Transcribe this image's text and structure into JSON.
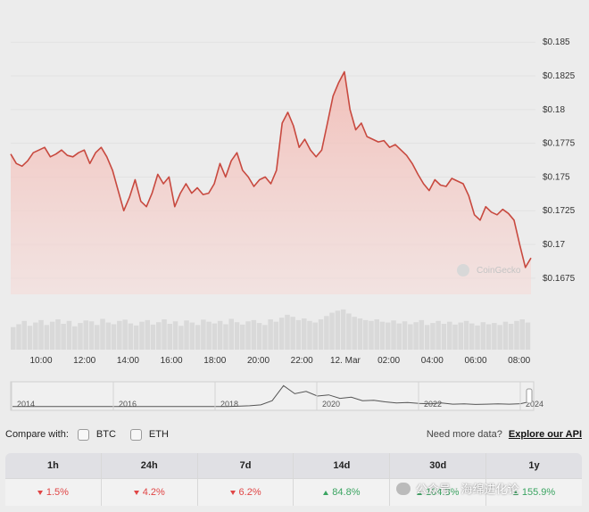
{
  "chart_data": {
    "type": "area",
    "y_ticks": [
      "$0.185",
      "$0.1825",
      "$0.18",
      "$0.1775",
      "$0.175",
      "$0.1725",
      "$0.17",
      "$0.1675"
    ],
    "ylim": [
      0.1663,
      0.1868
    ],
    "x_ticks": [
      "10:00",
      "12:00",
      "14:00",
      "16:00",
      "18:00",
      "20:00",
      "22:00",
      "12. Mar",
      "02:00",
      "04:00",
      "06:00",
      "08:00"
    ],
    "line_color": "#c8493f",
    "fill_color": "#f4c6c1",
    "series": [
      {
        "values": [
          0.1767,
          0.176,
          0.1758,
          0.1762,
          0.1768,
          0.177,
          0.1772,
          0.1765,
          0.1767,
          0.177,
          0.1766,
          0.1765,
          0.1768,
          0.177,
          0.176,
          0.1768,
          0.1772,
          0.1765,
          0.1755,
          0.174,
          0.1725,
          0.1735,
          0.1748,
          0.1732,
          0.1728,
          0.1738,
          0.1752,
          0.1745,
          0.175,
          0.1728,
          0.1738,
          0.1745,
          0.1738,
          0.1742,
          0.1737,
          0.1738,
          0.1745,
          0.176,
          0.175,
          0.1762,
          0.1768,
          0.1755,
          0.175,
          0.1743,
          0.1748,
          0.175,
          0.1745,
          0.1755,
          0.179,
          0.1798,
          0.1788,
          0.1772,
          0.1778,
          0.177,
          0.1765,
          0.177,
          0.179,
          0.181,
          0.182,
          0.1828,
          0.18,
          0.1785,
          0.179,
          0.178,
          0.1778,
          0.1776,
          0.1777,
          0.1772,
          0.1774,
          0.177,
          0.1766,
          0.176,
          0.1752,
          0.1745,
          0.174,
          0.1748,
          0.1744,
          0.1743,
          0.1749,
          0.1747,
          0.1745,
          0.1736,
          0.1722,
          0.1718,
          0.1728,
          0.1724,
          0.1722,
          0.1726,
          0.1723,
          0.1718,
          0.17,
          0.1683,
          0.169
        ]
      }
    ],
    "volume": [
      0.55,
      0.62,
      0.7,
      0.58,
      0.66,
      0.72,
      0.6,
      0.68,
      0.74,
      0.63,
      0.7,
      0.57,
      0.65,
      0.71,
      0.69,
      0.6,
      0.75,
      0.66,
      0.62,
      0.7,
      0.73,
      0.64,
      0.59,
      0.68,
      0.72,
      0.61,
      0.67,
      0.74,
      0.63,
      0.69,
      0.58,
      0.71,
      0.66,
      0.6,
      0.73,
      0.68,
      0.64,
      0.7,
      0.62,
      0.75,
      0.67,
      0.61,
      0.69,
      0.72,
      0.65,
      0.6,
      0.74,
      0.68,
      0.78,
      0.85,
      0.8,
      0.72,
      0.76,
      0.7,
      0.66,
      0.74,
      0.82,
      0.9,
      0.95,
      0.98,
      0.88,
      0.8,
      0.76,
      0.72,
      0.7,
      0.74,
      0.68,
      0.66,
      0.71,
      0.64,
      0.69,
      0.62,
      0.67,
      0.72,
      0.6,
      0.65,
      0.7,
      0.63,
      0.68,
      0.61,
      0.66,
      0.7,
      0.64,
      0.59,
      0.67,
      0.62,
      0.65,
      0.6,
      0.68,
      0.63,
      0.7,
      0.74,
      0.66
    ],
    "navigator": {
      "x_ticks": [
        "2014",
        "2016",
        "2018",
        "2020",
        "2022",
        "2024"
      ],
      "values": [
        0.05,
        0.05,
        0.05,
        0.05,
        0.05,
        0.05,
        0.05,
        0.05,
        0.05,
        0.05,
        0.05,
        0.05,
        0.05,
        0.05,
        0.05,
        0.05,
        0.05,
        0.05,
        0.05,
        0.05,
        0.06,
        0.08,
        0.12,
        0.3,
        0.95,
        0.6,
        0.7,
        0.5,
        0.55,
        0.4,
        0.45,
        0.3,
        0.32,
        0.25,
        0.2,
        0.22,
        0.18,
        0.16,
        0.2,
        0.15,
        0.16,
        0.14,
        0.15,
        0.16,
        0.15,
        0.17,
        0.28
      ]
    },
    "watermark": "CoinGecko"
  },
  "compare": {
    "label": "Compare with:",
    "options": [
      "BTC",
      "ETH"
    ],
    "help_text": "Need more data?",
    "link": "Explore our API"
  },
  "performance": {
    "headers": [
      "1h",
      "24h",
      "7d",
      "14d",
      "30d",
      "1y"
    ],
    "values": [
      "1.5%",
      "4.2%",
      "6.2%",
      "84.8%",
      "104.3%",
      "155.9%"
    ],
    "directions": [
      "down",
      "down",
      "down",
      "up",
      "up",
      "up"
    ]
  },
  "overlay_watermark": "公众号 · 海绵进化论"
}
